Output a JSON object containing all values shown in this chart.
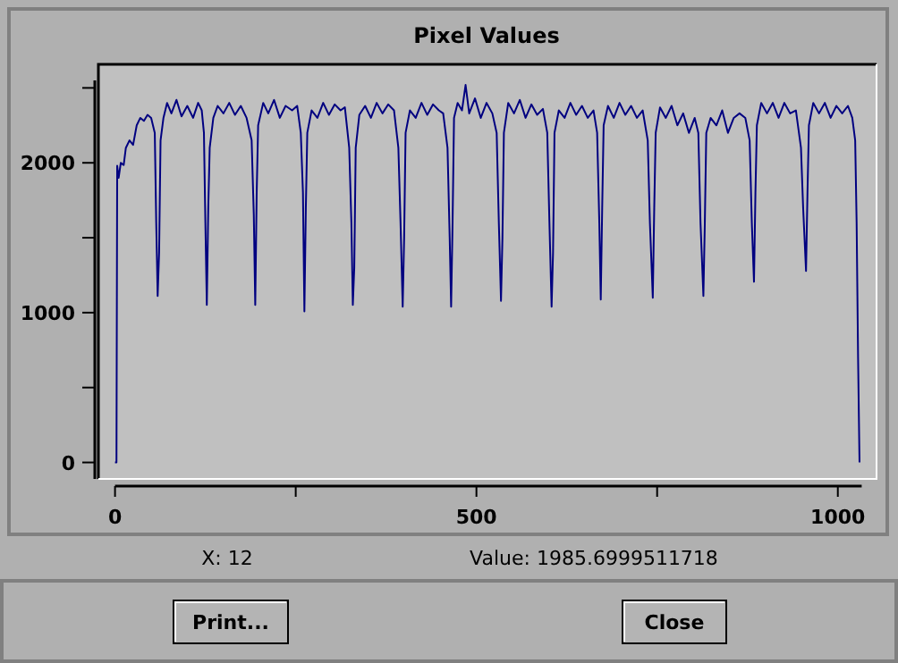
{
  "chart_data": {
    "type": "line",
    "title": "Pixel Values",
    "x": [
      0,
      2,
      3,
      5,
      8,
      12,
      15,
      20,
      25,
      30,
      35,
      40,
      45,
      50,
      55,
      57,
      59,
      61,
      63,
      67,
      72,
      78,
      85,
      92,
      100,
      108,
      115,
      120,
      123,
      125,
      127,
      129,
      131,
      136,
      142,
      150,
      158,
      166,
      174,
      182,
      189,
      192,
      194,
      196,
      198,
      205,
      212,
      220,
      228,
      236,
      245,
      252,
      257,
      260,
      262,
      264,
      266,
      272,
      280,
      288,
      296,
      304,
      312,
      318,
      324,
      327,
      329,
      331,
      333,
      338,
      346,
      354,
      362,
      370,
      378,
      386,
      392,
      395,
      398,
      400,
      402,
      408,
      416,
      424,
      432,
      440,
      448,
      454,
      460,
      463,
      465,
      467,
      469,
      474,
      480,
      485,
      490,
      498,
      506,
      514,
      522,
      528,
      531,
      534,
      536,
      538,
      544,
      552,
      560,
      568,
      576,
      584,
      592,
      598,
      601,
      604,
      606,
      608,
      614,
      622,
      630,
      638,
      646,
      654,
      662,
      667,
      670,
      672,
      674,
      676,
      682,
      690,
      698,
      706,
      714,
      722,
      730,
      737,
      740,
      744,
      746,
      748,
      754,
      762,
      770,
      778,
      786,
      794,
      802,
      807,
      810,
      814,
      816,
      818,
      824,
      832,
      840,
      848,
      856,
      864,
      872,
      878,
      881,
      884,
      886,
      888,
      894,
      902,
      910,
      918,
      926,
      934,
      942,
      949,
      952,
      956,
      958,
      960,
      966,
      974,
      982,
      990,
      998,
      1006,
      1014,
      1020,
      1024,
      1026,
      1028,
      1030
    ],
    "series": [
      {
        "color": "#000080",
        "values": [
          0,
          0,
          1980,
          1900,
          2000,
          1985,
          2100,
          2150,
          2120,
          2250,
          2300,
          2280,
          2320,
          2300,
          2200,
          1600,
          1111,
          1400,
          2150,
          2300,
          2400,
          2330,
          2420,
          2310,
          2380,
          2300,
          2400,
          2350,
          2200,
          1600,
          1052,
          1700,
          2100,
          2300,
          2380,
          2330,
          2400,
          2320,
          2380,
          2300,
          2150,
          1650,
          1052,
          1800,
          2250,
          2400,
          2330,
          2420,
          2300,
          2380,
          2350,
          2380,
          2200,
          1800,
          1008,
          1700,
          2200,
          2350,
          2300,
          2400,
          2320,
          2390,
          2350,
          2370,
          2100,
          1600,
          1052,
          1300,
          2100,
          2320,
          2380,
          2300,
          2400,
          2330,
          2390,
          2350,
          2100,
          1600,
          1040,
          1500,
          2200,
          2350,
          2300,
          2400,
          2320,
          2390,
          2350,
          2330,
          2100,
          1500,
          1040,
          1600,
          2300,
          2400,
          2350,
          2520,
          2330,
          2430,
          2300,
          2400,
          2330,
          2200,
          1600,
          1079,
          1500,
          2200,
          2400,
          2330,
          2420,
          2300,
          2390,
          2320,
          2360,
          2200,
          1600,
          1040,
          1400,
          2200,
          2350,
          2300,
          2400,
          2320,
          2380,
          2300,
          2350,
          2200,
          1600,
          1087,
          1700,
          2250,
          2380,
          2300,
          2400,
          2320,
          2380,
          2300,
          2350,
          2150,
          1600,
          1099,
          1700,
          2200,
          2370,
          2300,
          2380,
          2250,
          2330,
          2200,
          2300,
          2200,
          1600,
          1111,
          1600,
          2200,
          2300,
          2250,
          2350,
          2200,
          2300,
          2330,
          2300,
          2150,
          1600,
          1206,
          1800,
          2250,
          2400,
          2330,
          2400,
          2300,
          2400,
          2330,
          2350,
          2100,
          1700,
          1278,
          1800,
          2250,
          2400,
          2330,
          2400,
          2300,
          2380,
          2330,
          2380,
          2300,
          2150,
          1600,
          700,
          0
        ]
      }
    ],
    "xlim": [
      0,
      1033
    ],
    "xticks": [
      0,
      {
        "value": 250,
        "label": null
      },
      500,
      {
        "value": 750,
        "label": null
      },
      1000
    ],
    "ylim": [
      -110,
      2550
    ],
    "yticks": [
      0,
      {
        "value": 500,
        "label": null
      },
      1000,
      {
        "value": 1500,
        "label": null
      },
      2000,
      {
        "value": 2500,
        "label": null
      }
    ],
    "grid": false,
    "marker": "none",
    "line_style": "solid",
    "annotations": [
      "X: 12",
      "Value: 1985.6999511718",
      "Print...",
      "Close"
    ]
  }
}
